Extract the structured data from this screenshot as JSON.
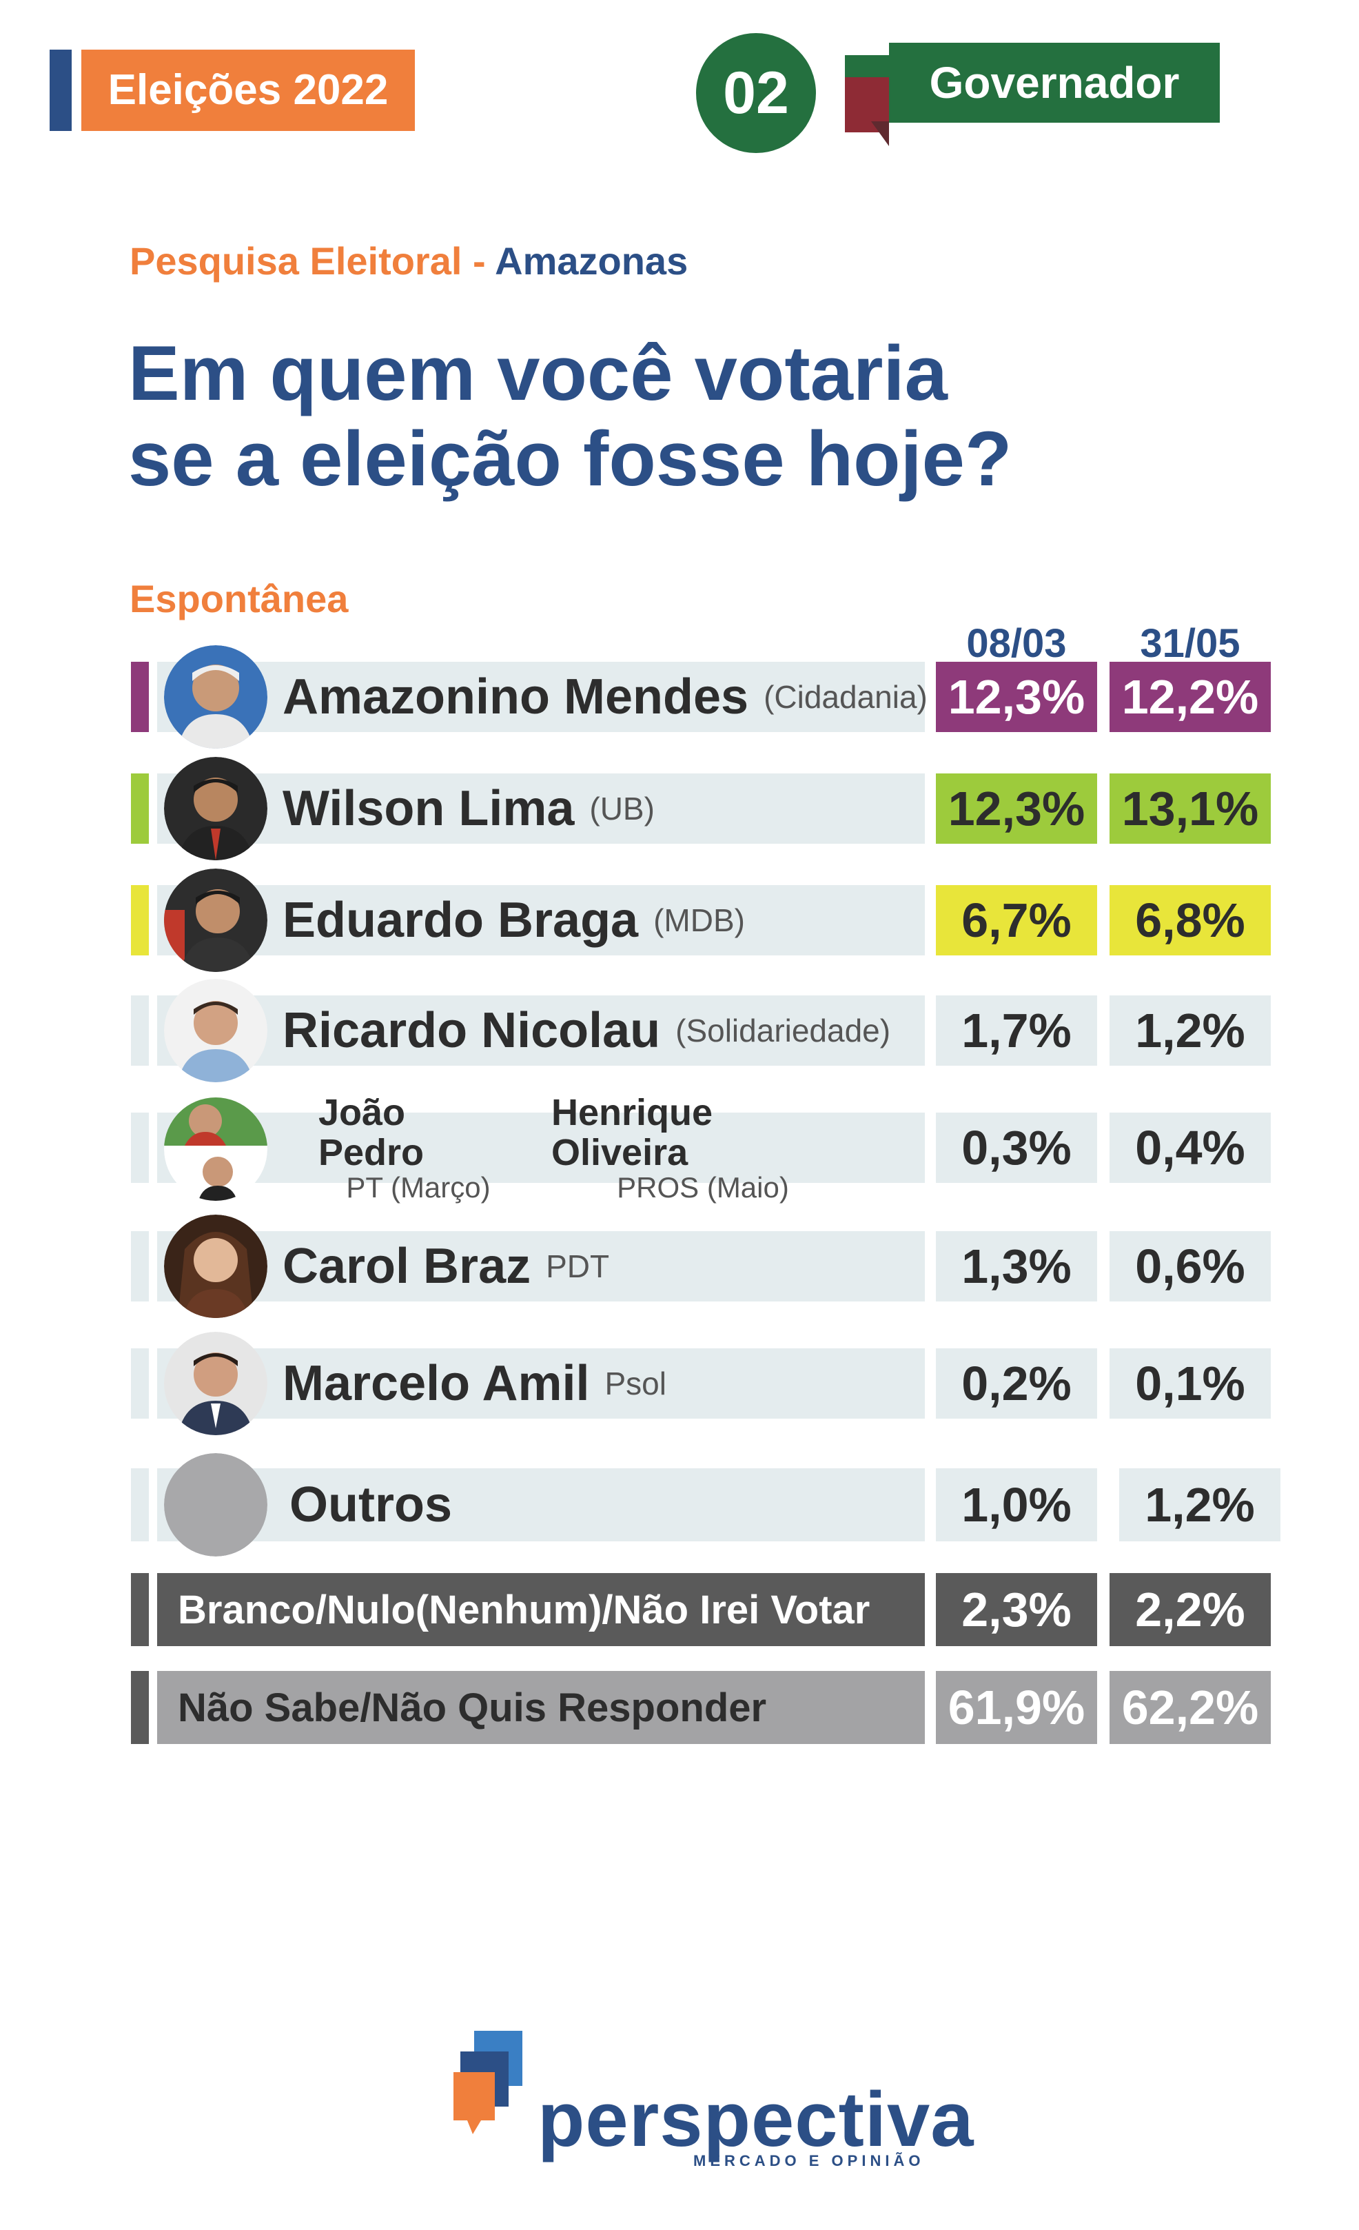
{
  "header": {
    "tag": "Eleições 2022",
    "number": "02",
    "office": "Governador",
    "subtitle_part1": "Pesquisa Eleitoral",
    "subtitle_sep": " - ",
    "subtitle_part2": "Amazonas",
    "question_line1": "Em quem você votaria",
    "question_line2": "se a eleição fosse hoje?",
    "section": "Espontânea"
  },
  "colors": {
    "orange": "#f07f3c",
    "navy": "#2c4f86",
    "green": "#24703f",
    "purple": "#8e3a7a",
    "lime": "#9dcb3c",
    "yellow": "#e8e53a",
    "row_bg": "#e4ecee",
    "dark_gray": "#5a5a5a",
    "mid_gray": "#a3a3a5"
  },
  "chart_data": {
    "type": "table",
    "columns": [
      "08/03",
      "31/05"
    ],
    "rows": [
      {
        "name": "Amazonino Mendes",
        "party": "(Cidadania)",
        "values": [
          "12,3%",
          "12,2%"
        ],
        "color": "#8e3a7a"
      },
      {
        "name": "Wilson Lima",
        "party": "(UB)",
        "values": [
          "12,3%",
          "13,1%"
        ],
        "color": "#9dcb3c"
      },
      {
        "name": "Eduardo Braga",
        "party": "(MDB)",
        "values": [
          "6,7%",
          "6,8%"
        ],
        "color": "#e8e53a"
      },
      {
        "name": "Ricardo Nicolau",
        "party": "(Solidariedade)",
        "values": [
          "1,7%",
          "1,2%"
        ],
        "color": "#e4ecee"
      },
      {
        "name": "João Pedro",
        "party": "PT (Março)",
        "name2": "Henrique Oliveira",
        "party2": "PROS (Maio)",
        "values": [
          "0,3%",
          "0,4%"
        ],
        "color": "#e4ecee"
      },
      {
        "name": "Carol Braz",
        "party": "PDT",
        "values": [
          "1,3%",
          "0,6%"
        ],
        "color": "#e4ecee"
      },
      {
        "name": "Marcelo Amil",
        "party": "Psol",
        "values": [
          "0,2%",
          "0,1%"
        ],
        "color": "#e4ecee"
      },
      {
        "name": "Outros",
        "party": "",
        "values": [
          "1,0%",
          "1,2%"
        ],
        "color": "#e4ecee"
      },
      {
        "name": "Branco/Nulo(Nenhum)/Não Irei Votar",
        "values": [
          "2,3%",
          "2,2%"
        ],
        "color": "#5a5a5a"
      },
      {
        "name": "Não Sabe/Não Quis Responder",
        "values": [
          "61,9%",
          "62,2%"
        ],
        "color": "#a3a3a5"
      }
    ]
  },
  "logo": {
    "name": "perspectiva",
    "tagline": "MERCADO E OPINIÃO"
  }
}
